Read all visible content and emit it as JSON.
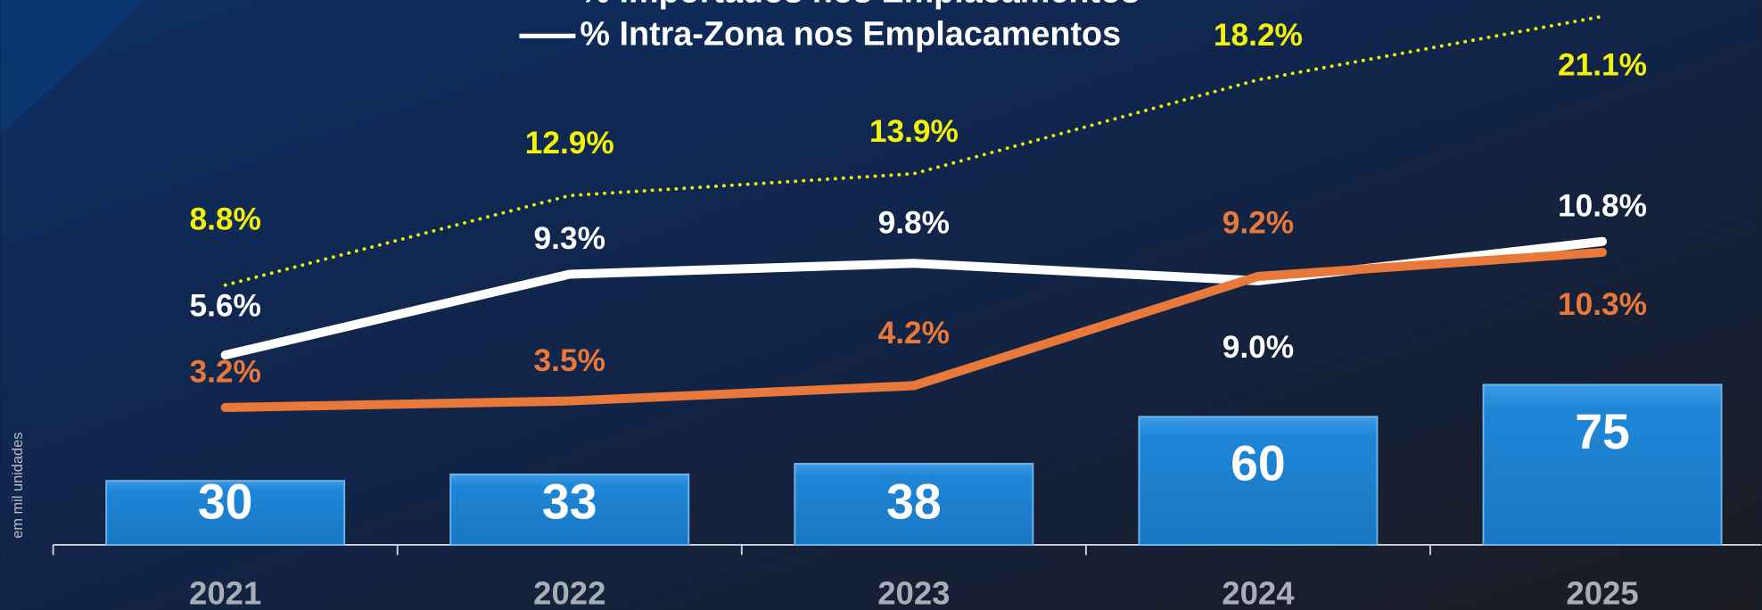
{
  "chart_data": {
    "type": "combo",
    "y_axis_label": "em mil unidades",
    "categories": [
      "2021",
      "2022",
      "2023",
      "2024",
      "2025"
    ],
    "series": [
      {
        "type": "bar",
        "color": "#1f86d6",
        "values": [
          30,
          33,
          38,
          60,
          75
        ]
      },
      {
        "type": "line",
        "name": "% Importados nos Emplacamentos",
        "color": "#f2f20a",
        "style": "dotted",
        "values": [
          8.8,
          12.9,
          13.9,
          18.2,
          21.1
        ],
        "value_labels": [
          "8.8%",
          "12.9%",
          "13.9%",
          "18.2%",
          "21.1%"
        ]
      },
      {
        "type": "line",
        "name": "% Intra-Zona nos Emplacamentos",
        "color": "#ffffff",
        "style": "solid",
        "values": [
          5.6,
          9.3,
          9.8,
          9.0,
          10.8
        ],
        "value_labels": [
          "5.6%",
          "9.3%",
          "9.8%",
          "9.0%",
          "10.8%"
        ]
      },
      {
        "type": "line",
        "color": "#e8793a",
        "style": "solid",
        "values": [
          3.2,
          3.5,
          4.2,
          9.2,
          10.3
        ],
        "value_labels": [
          "3.2%",
          "3.5%",
          "4.2%",
          "9.2%",
          "10.3%"
        ]
      }
    ]
  }
}
